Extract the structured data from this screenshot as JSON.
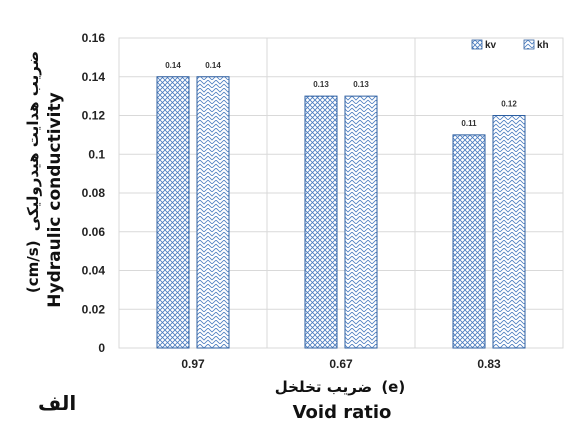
{
  "panel_label": "الف",
  "chart_data": {
    "type": "bar",
    "categories": [
      "0.97",
      "0.67",
      "0.83"
    ],
    "series": [
      {
        "name": "kv",
        "values": [
          0.14,
          0.13,
          0.11
        ],
        "data_labels": [
          "0.14",
          "0.13",
          "0.11"
        ]
      },
      {
        "name": "kh",
        "values": [
          0.14,
          0.13,
          0.12
        ],
        "data_labels": [
          "0.14",
          "0.13",
          "0.12"
        ]
      }
    ],
    "ylim": [
      0,
      0.16
    ],
    "yticks": [
      "0",
      "0.02",
      "0.04",
      "0.06",
      "0.08",
      "0.1",
      "0.12",
      "0.14",
      "0.16"
    ],
    "ylabel_fa": "ضریب هدایت هیدرولیکی",
    "ylabel_unit": "(cm/s)",
    "ylabel_en": "Hydraulic conductivity",
    "xlabel_fa": "ضریب تخلخل",
    "xlabel_symbol": "(e)",
    "xlabel_en": "Void ratio",
    "grid": true,
    "legend_position": "top-right",
    "colors": {
      "bar_stroke": "#2e5fa0",
      "pattern_stroke": "#4a7cc0",
      "grid": "#d9d9d9"
    }
  }
}
